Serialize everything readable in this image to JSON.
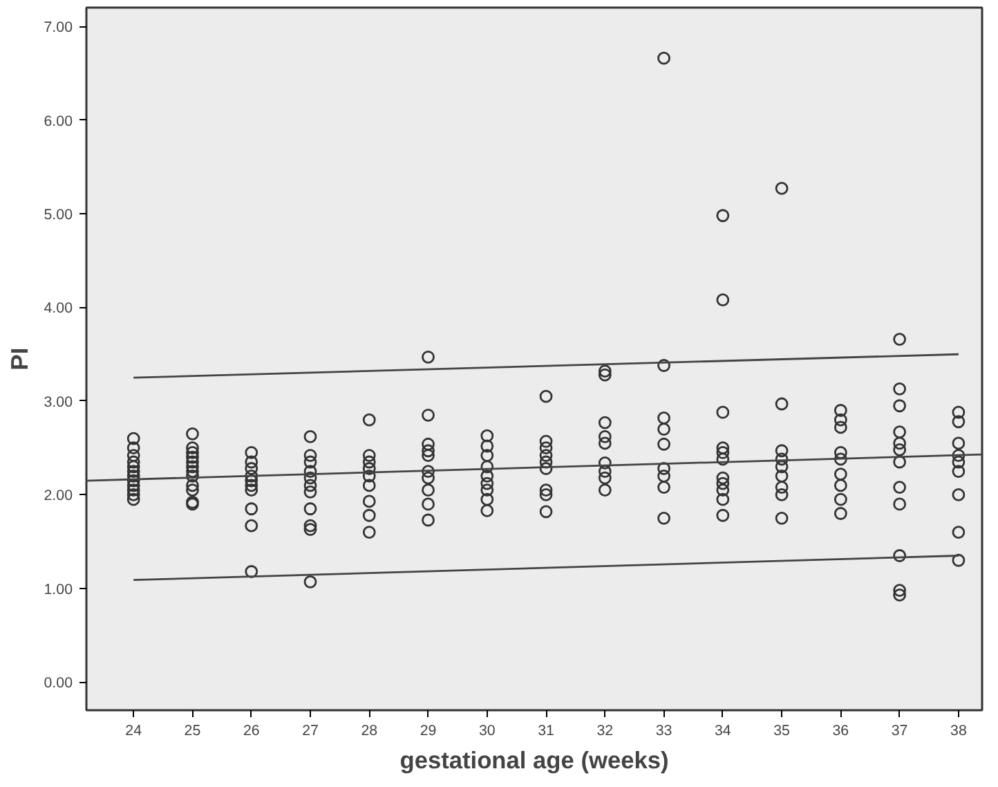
{
  "chart_data": {
    "type": "scatter",
    "xlabel": "gestational age (weeks)",
    "ylabel": "PI",
    "xlim": [
      23.2,
      38.4
    ],
    "ylim": [
      -0.3,
      7.2
    ],
    "xticks": [
      24,
      25,
      26,
      27,
      28,
      29,
      30,
      31,
      32,
      33,
      34,
      35,
      36,
      37,
      38
    ],
    "yticks": [
      {
        "value": 0,
        "label": "0.00"
      },
      {
        "value": 1,
        "label": "1.00"
      },
      {
        "value": 2,
        "label": "2.00"
      },
      {
        "value": 3,
        "label": "3.00"
      },
      {
        "value": 4,
        "label": "4.00"
      },
      {
        "value": 5,
        "label": "5.00"
      },
      {
        "value": 6,
        "label": "6.00"
      },
      {
        "value": 7,
        "label": "7.00"
      }
    ],
    "grid": false,
    "series": [
      {
        "marker": "circle",
        "color": "#333333",
        "x": [
          24,
          24,
          24,
          24,
          24,
          24,
          24,
          24,
          24,
          24,
          24,
          24,
          25,
          25,
          25,
          25,
          25,
          25,
          25,
          25,
          25,
          25,
          25,
          25,
          26,
          26,
          26,
          26,
          26,
          26,
          26,
          26,
          26,
          26,
          27,
          27,
          27,
          27,
          27,
          27,
          27,
          27,
          27,
          27,
          27,
          28,
          28,
          28,
          28,
          28,
          28,
          28,
          28,
          28,
          29,
          29,
          29,
          29,
          29,
          29,
          29,
          29,
          29,
          29,
          30,
          30,
          30,
          30,
          30,
          30,
          30,
          30,
          30,
          31,
          31,
          31,
          31,
          31,
          31,
          31,
          31,
          31,
          32,
          32,
          32,
          32,
          32,
          32,
          32,
          32,
          32,
          33,
          33,
          33,
          33,
          33,
          33,
          33,
          33,
          33,
          34,
          34,
          34,
          34,
          34,
          34,
          34,
          34,
          34,
          34,
          34,
          35,
          35,
          35,
          35,
          35,
          35,
          35,
          35,
          35,
          36,
          36,
          36,
          36,
          36,
          36,
          36,
          36,
          36,
          37,
          37,
          37,
          37,
          37,
          37,
          37,
          37,
          37,
          37,
          37,
          37,
          38,
          38,
          38,
          38,
          38,
          38,
          38,
          38,
          38
        ],
        "values": [
          2.6,
          2.5,
          2.42,
          2.35,
          2.3,
          2.25,
          2.2,
          2.15,
          2.1,
          2.05,
          2.0,
          1.95,
          2.65,
          2.5,
          2.45,
          2.4,
          2.35,
          2.3,
          2.25,
          2.2,
          2.1,
          2.05,
          1.92,
          1.9,
          2.45,
          2.35,
          2.28,
          2.2,
          2.15,
          2.1,
          2.05,
          1.85,
          1.67,
          1.18,
          2.62,
          2.42,
          2.35,
          2.25,
          2.18,
          2.1,
          2.03,
          1.85,
          1.67,
          1.63,
          1.07,
          2.8,
          2.42,
          2.35,
          2.28,
          2.2,
          2.1,
          1.93,
          1.78,
          1.6,
          3.47,
          2.85,
          2.54,
          2.47,
          2.42,
          2.25,
          2.18,
          2.05,
          1.9,
          1.73,
          2.63,
          2.52,
          2.42,
          2.3,
          2.2,
          2.12,
          2.05,
          1.95,
          1.83,
          3.05,
          2.57,
          2.5,
          2.42,
          2.35,
          2.28,
          2.05,
          2.0,
          1.82,
          3.32,
          3.28,
          2.77,
          2.62,
          2.55,
          2.34,
          2.25,
          2.18,
          2.05,
          6.66,
          3.38,
          2.82,
          2.7,
          2.54,
          2.28,
          2.2,
          2.08,
          1.75,
          4.98,
          4.08,
          2.88,
          2.5,
          2.45,
          2.38,
          2.18,
          2.12,
          2.05,
          1.95,
          1.78,
          5.27,
          2.97,
          2.47,
          2.38,
          2.3,
          2.2,
          2.08,
          2.0,
          1.75,
          2.9,
          2.8,
          2.72,
          2.45,
          2.38,
          2.22,
          2.1,
          1.95,
          1.8,
          3.66,
          3.13,
          2.95,
          2.67,
          2.55,
          2.48,
          2.35,
          2.08,
          1.9,
          1.35,
          0.98,
          0.93,
          2.88,
          2.78,
          2.55,
          2.42,
          2.35,
          2.25,
          2.0,
          1.6,
          1.3
        ]
      },
      {
        "type": "line",
        "color": "#444444",
        "x": [
          23.2,
          38.4
        ],
        "values": [
          2.15,
          2.43
        ]
      },
      {
        "type": "line",
        "color": "#444444",
        "x": [
          24,
          38
        ],
        "values": [
          3.25,
          3.5
        ]
      },
      {
        "type": "line",
        "color": "#444444",
        "x": [
          24,
          38
        ],
        "values": [
          1.09,
          1.35
        ]
      }
    ]
  }
}
